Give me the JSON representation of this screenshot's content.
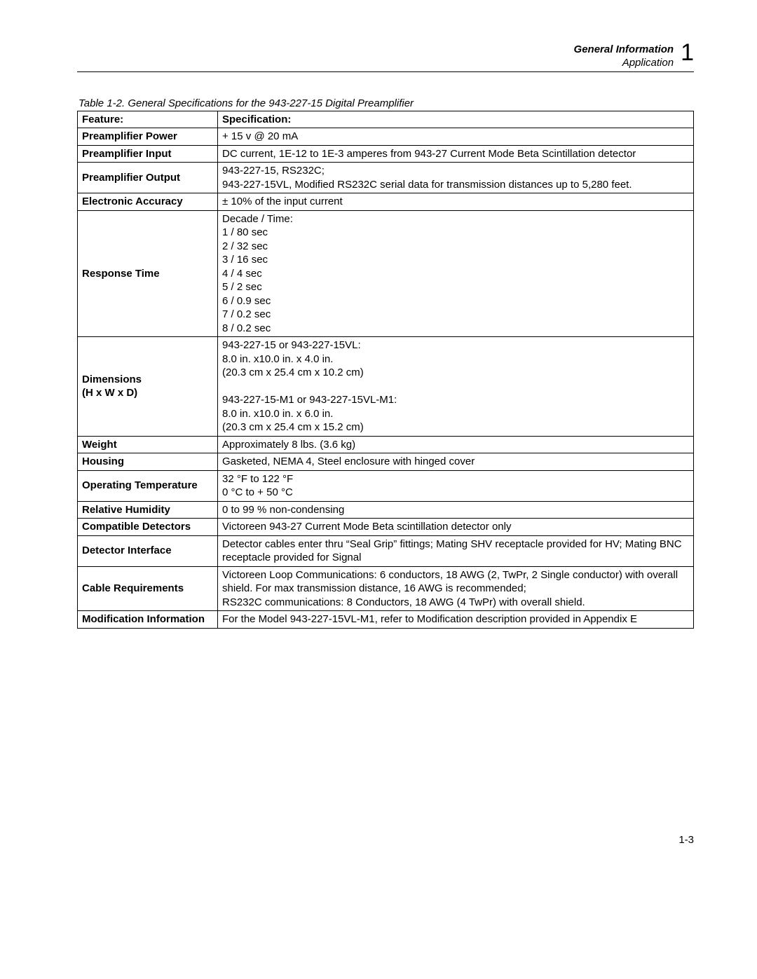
{
  "header": {
    "title": "General Information",
    "subtitle": "Application",
    "chapter_number": "1"
  },
  "caption": "Table 1-2.   General Specifications for the 943-227-15 Digital Preamplifier",
  "columns": {
    "feature": "Feature:",
    "spec": "Specification:"
  },
  "rows": [
    {
      "feature": "Preamplifier Power",
      "spec": "+ 15 v @ 20 mA"
    },
    {
      "feature": "Preamplifier Input",
      "spec": "DC current, 1E-12 to 1E-3 amperes from 943-27 Current Mode Beta Scintillation detector"
    },
    {
      "feature": "Preamplifier Output",
      "spec": "943-227-15, RS232C;\n943-227-15VL, Modified RS232C serial data for transmission distances up to 5,280 feet."
    },
    {
      "feature": "Electronic Accuracy",
      "spec": "± 10% of the input current"
    },
    {
      "feature": "Response Time",
      "spec": "Decade / Time:\n1 /  80 sec\n2 / 32 sec\n3 / 16 sec\n4 /  4 sec\n5 /  2 sec\n6 / 0.9 sec\n7 / 0.2 sec\n8 / 0.2 sec\n "
    },
    {
      "feature": "Dimensions\n(H x W x D)",
      "spec": "943-227-15 or 943-227-15VL:\n8.0 in. x10.0 in. x 4.0 in.\n(20.3 cm x 25.4 cm x 10.2 cm)\n\n943-227-15-M1 or 943-227-15VL-M1:\n8.0 in. x10.0 in. x 6.0 in.\n(20.3 cm x 25.4 cm x 15.2 cm)\n "
    },
    {
      "feature": "Weight",
      "spec": "Approximately 8 lbs. (3.6 kg)"
    },
    {
      "feature": "Housing",
      "spec": "Gasketed, NEMA 4, Steel enclosure with hinged cover"
    },
    {
      "feature": "Operating Temperature",
      "spec": "32 °F to 122 °F\n0 °C to + 50 °C"
    },
    {
      "feature": "Relative Humidity",
      "spec": "0 to 99 % non-condensing"
    },
    {
      "feature": "Compatible Detectors",
      "spec": "Victoreen 943-27 Current Mode Beta scintillation detector only"
    },
    {
      "feature": "Detector Interface",
      "spec": "Detector cables enter thru “Seal Grip” fittings; Mating SHV receptacle provided for HV; Mating BNC receptacle provided for Signal"
    },
    {
      "feature": "Cable Requirements",
      "spec": "Victoreen Loop Communications: 6 conductors, 18 AWG (2, TwPr, 2 Single conductor) with overall shield.  For max transmission distance, 16 AWG is recommended;\nRS232C communications:  8 Conductors, 18 AWG (4 TwPr) with overall shield."
    },
    {
      "feature": "Modification Information",
      "spec": "For the Model 943-227-15VL-M1, refer to Modification description provided in Appendix E"
    }
  ],
  "page_number": "1-3"
}
